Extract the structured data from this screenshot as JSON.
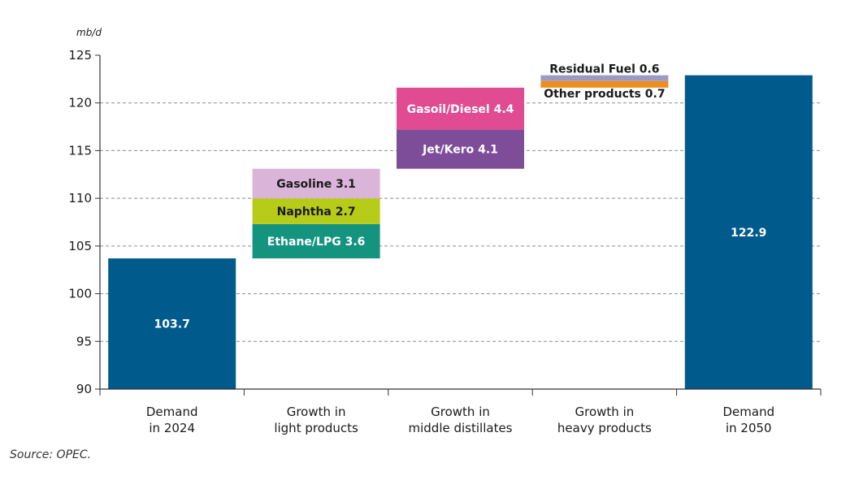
{
  "chart_data": {
    "type": "bar",
    "subtype": "waterfall",
    "ylabel": "mb/d",
    "ylim": [
      90,
      125
    ],
    "yticks": [
      "125",
      "120",
      "115",
      "110",
      "105",
      "100",
      "95",
      "90"
    ],
    "grid": true,
    "categories": [
      [
        "Demand",
        "in 2024"
      ],
      [
        "Growth in",
        "light products"
      ],
      [
        "Growth in",
        "middle distillates"
      ],
      [
        "Growth in",
        "heavy products"
      ],
      [
        "Demand",
        "in 2050"
      ]
    ],
    "totals": [
      {
        "category_index": 0,
        "value": 103.7,
        "label": "103.7",
        "color": "#005a8c"
      },
      {
        "category_index": 4,
        "value": 122.9,
        "label": "122.9",
        "color": "#005a8c"
      }
    ],
    "segments": [
      {
        "category_index": 1,
        "name": "Ethane/LPG",
        "label": "Ethane/LPG 3.6",
        "value": 3.6,
        "color": "#14937f",
        "label_color": "#ffffff"
      },
      {
        "category_index": 1,
        "name": "Naphtha",
        "label": "Naphtha 2.7",
        "value": 2.7,
        "color": "#b7cc19",
        "label_color": "#1a1a1a"
      },
      {
        "category_index": 1,
        "name": "Gasoline",
        "label": "Gasoline 3.1",
        "value": 3.1,
        "color": "#dbb5d9",
        "label_color": "#1a1a1a"
      },
      {
        "category_index": 2,
        "name": "Jet/Kero",
        "label": "Jet/Kero 4.1",
        "value": 4.1,
        "color": "#7d4d99",
        "label_color": "#ffffff"
      },
      {
        "category_index": 2,
        "name": "Gasoil/Diesel",
        "label": "Gasoil/Diesel 4.4",
        "value": 4.4,
        "color": "#e04b92",
        "label_color": "#ffffff"
      },
      {
        "category_index": 3,
        "name": "Other products",
        "label": "Other products 0.7",
        "value": 0.7,
        "color": "#ef8d1f",
        "label_color": "#1a1a1a"
      },
      {
        "category_index": 3,
        "name": "Residual Fuel",
        "label": "Residual Fuel 0.6",
        "value": 0.6,
        "color": "#9a9ac6",
        "label_color": "#1a1a1a"
      }
    ]
  },
  "source": "Source: OPEC."
}
